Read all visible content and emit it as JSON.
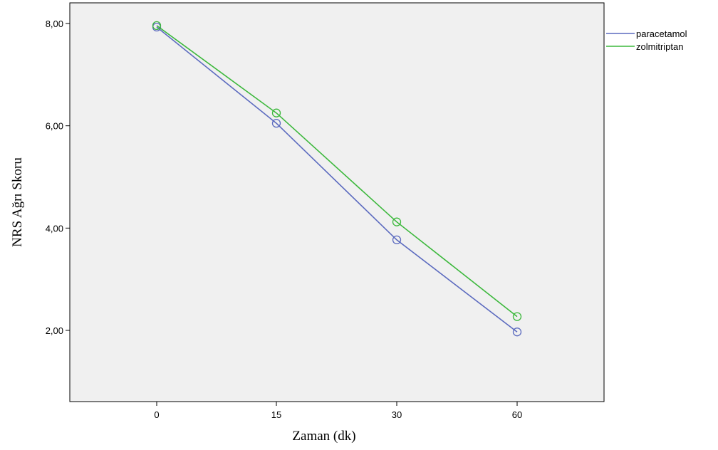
{
  "chart_data": {
    "type": "line",
    "title": "",
    "xlabel": "Zaman (dk)",
    "ylabel": "NRS Ağrı Skoru",
    "categories": [
      "0",
      "15",
      "30",
      "60"
    ],
    "ylim": [
      0.6,
      8.4
    ],
    "yticks": [
      2,
      4,
      6,
      8
    ],
    "ytick_labels": [
      "2,00",
      "4,00",
      "6,00",
      "8,00"
    ],
    "grid": false,
    "legend_position": "right",
    "plot_background": "#f0f0f0",
    "series": [
      {
        "name": "paracetamol",
        "color": "#5b6abf",
        "values": [
          7.93,
          6.05,
          3.77,
          1.97
        ]
      },
      {
        "name": "zolmitriptan",
        "color": "#3cb83c",
        "values": [
          7.96,
          6.25,
          4.12,
          2.27
        ]
      }
    ]
  }
}
